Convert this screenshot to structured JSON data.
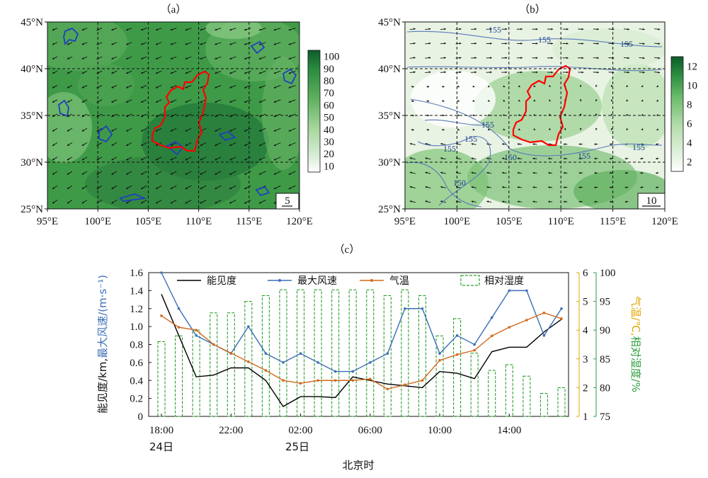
{
  "colors": {
    "visibility": "#000000",
    "max_wind": "#3d6fb6",
    "temperature": "#d2691e",
    "humidity": "#2ca02c",
    "temp_axis": "#e0a800",
    "rh_axis": "#2e9e3e",
    "boundary": "#ff0000",
    "contour_a": "#1f3fbf",
    "contour_b": "#5a7ab8",
    "map_a_base": "#3f9a48",
    "map_b_base": "#e9f3e4"
  },
  "panel_a": {
    "label": "（a）",
    "lat_ticks": [
      "25°N",
      "30°N",
      "35°N",
      "40°N",
      "45°N"
    ],
    "lon_ticks": [
      "95°E",
      "100°E",
      "105°E",
      "110°E",
      "115°E",
      "120°E"
    ],
    "colorbar_ticks": [
      "10",
      "20",
      "30",
      "40",
      "50",
      "60",
      "70",
      "80",
      "90",
      "100"
    ],
    "reference_vector": "5"
  },
  "panel_b": {
    "label": "（b）",
    "lat_ticks": [
      "25°N",
      "30°N",
      "35°N",
      "40°N",
      "45°N"
    ],
    "lon_ticks": [
      "95°E",
      "100°E",
      "105°E",
      "110°E",
      "115°E",
      "120°E"
    ],
    "colorbar_ticks": [
      "2",
      "4",
      "6",
      "8",
      "10",
      "12"
    ],
    "reference_vector": "10",
    "contour_labels": [
      "155",
      "155",
      "155",
      "155",
      "155",
      "155",
      "150",
      "150",
      "155",
      "155"
    ]
  },
  "panel_c": {
    "label": "（c）",
    "chart_data": {
      "type": "line",
      "x": [
        "18:00",
        "19:00",
        "20:00",
        "21:00",
        "22:00",
        "23:00",
        "00:00",
        "01:00",
        "02:00",
        "03:00",
        "04:00",
        "05:00",
        "06:00",
        "07:00",
        "08:00",
        "09:00",
        "10:00",
        "11:00",
        "12:00",
        "13:00",
        "14:00",
        "15:00",
        "16:00",
        "17:00"
      ],
      "x_tick_labels": [
        "18:00",
        "22:00",
        "02:00",
        "06:00",
        "10:00",
        "14:00"
      ],
      "date_labels": [
        "24日",
        "25日"
      ],
      "xlabel": "北京时",
      "ylabel_left_part1": "能见度/km,",
      "ylabel_left_part2": "最大风速/(m·s⁻¹)",
      "ylabel_right1": "气温/℃,",
      "ylabel_right2": "相对湿度/%",
      "y_left_ticks": [
        "0",
        "0.2",
        "0.4",
        "0.6",
        "0.8",
        "1.0",
        "1.2",
        "1.4",
        "1.6"
      ],
      "y_right1_ticks": [
        "1",
        "2",
        "3",
        "4",
        "5",
        "6"
      ],
      "y_right2_ticks": [
        "75",
        "80",
        "85",
        "90",
        "95",
        "100"
      ],
      "ylim_left": [
        0,
        1.6
      ],
      "ylim_right1": [
        1,
        6
      ],
      "ylim_right2": [
        75,
        100
      ],
      "series": [
        {
          "name": "能见度",
          "axis": "left",
          "values": [
            1.36,
            0.9,
            0.44,
            0.46,
            0.54,
            0.54,
            0.4,
            0.11,
            0.22,
            0.22,
            0.21,
            0.44,
            0.4,
            0.36,
            0.34,
            0.32,
            0.5,
            0.48,
            0.42,
            0.72,
            0.77,
            0.77,
            0.94,
            1.08
          ]
        },
        {
          "name": "最大风速",
          "axis": "left",
          "values": [
            1.6,
            1.2,
            0.9,
            0.8,
            0.7,
            1.0,
            0.7,
            0.6,
            0.7,
            0.6,
            0.5,
            0.5,
            0.6,
            0.7,
            1.2,
            1.2,
            0.7,
            0.9,
            0.8,
            1.1,
            1.4,
            1.4,
            0.9,
            1.2
          ]
        },
        {
          "name": "气温",
          "axis": "right1",
          "values": [
            4.5,
            4.1,
            4.0,
            3.5,
            3.2,
            2.9,
            2.6,
            2.25,
            2.15,
            2.25,
            2.25,
            2.25,
            2.3,
            1.95,
            2.1,
            2.25,
            2.95,
            3.15,
            3.3,
            3.8,
            4.1,
            4.35,
            4.6,
            4.4
          ]
        },
        {
          "name": "相对湿度",
          "axis": "right2",
          "values": [
            88,
            89,
            90,
            93,
            93,
            95,
            96,
            97,
            97,
            97,
            97,
            97,
            97,
            96,
            97,
            96,
            89,
            92,
            86,
            83,
            84,
            82,
            79,
            80
          ]
        }
      ],
      "legend_position": "top"
    }
  }
}
